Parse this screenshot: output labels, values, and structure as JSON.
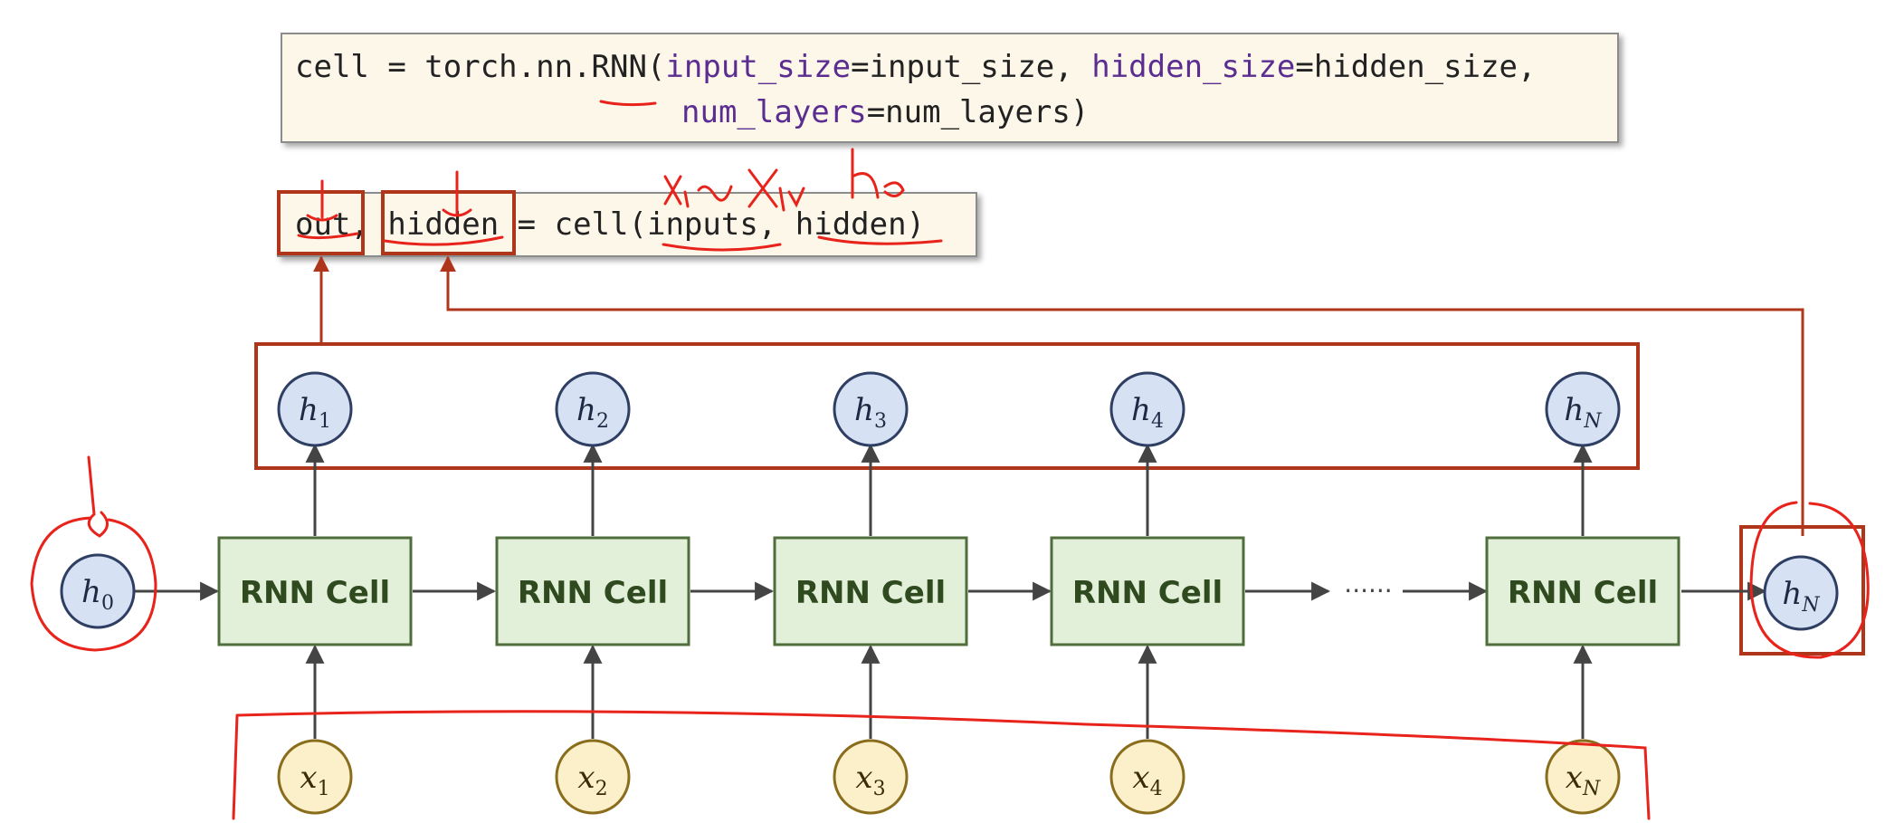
{
  "code_line1": {
    "prefix": "cell = torch.nn.RNN(",
    "kw1": "input_size",
    "mid1": "=input_size, ",
    "kw2": "hidden_size",
    "mid2": "=hidden_size,"
  },
  "code_line2": {
    "kw3": "num_layers",
    "end": "=num_layers)"
  },
  "code_call": {
    "out": "out",
    "sep": ", ",
    "hidden": "hidden",
    "rest1": " = cell(",
    "inputs": "inputs",
    "comma": ", ",
    "hidden2": "hidden",
    "close": ")"
  },
  "cells": [
    "RNN Cell",
    "RNN Cell",
    "RNN Cell",
    "RNN Cell",
    "RNN Cell"
  ],
  "hidden_outputs": [
    {
      "base": "h",
      "sub": "1"
    },
    {
      "base": "h",
      "sub": "2"
    },
    {
      "base": "h",
      "sub": "3"
    },
    {
      "base": "h",
      "sub": "4"
    },
    {
      "base": "h",
      "sub": "N"
    }
  ],
  "inputs": [
    {
      "base": "x",
      "sub": "1"
    },
    {
      "base": "x",
      "sub": "2"
    },
    {
      "base": "x",
      "sub": "3"
    },
    {
      "base": "x",
      "sub": "4"
    },
    {
      "base": "x",
      "sub": "N"
    }
  ],
  "h0": {
    "base": "h",
    "sub": "0"
  },
  "hN_final": {
    "base": "h",
    "sub": "N"
  },
  "ellipsis": "······",
  "handwriting": {
    "above_inputs": "x₁~x_N",
    "above_hidden": "h₀"
  },
  "colors": {
    "cell_fill": "#e2efd9",
    "cell_border": "#4f6e3b",
    "cell_text": "#2f4a1f",
    "h_fill": "#d6e1f3",
    "h_border": "#2f3f63",
    "x_fill": "#fbf0c9",
    "x_border": "#8a6d1c",
    "box_red": "#b0361b",
    "pen_red": "#e8231b"
  }
}
